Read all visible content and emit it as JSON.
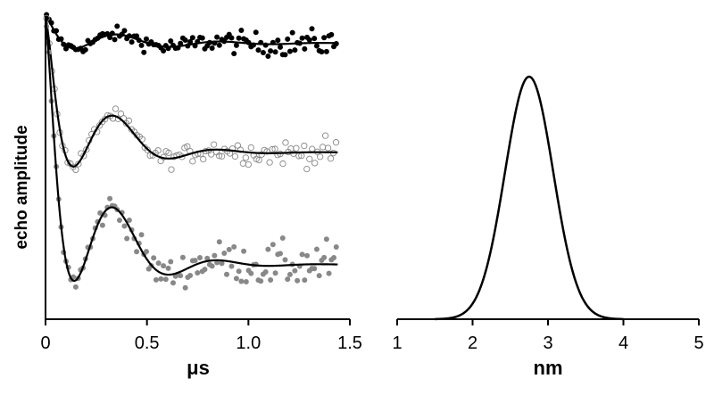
{
  "ylabel_text": "echo amplitude",
  "chart_data": [
    {
      "type": "scatter",
      "xlabel": "μs",
      "ylabel": "echo amplitude",
      "xlim": [
        0,
        1.5
      ],
      "xticks": [
        "0",
        "0.5",
        "1.0",
        "1.5"
      ],
      "ylim": [
        0,
        1
      ],
      "grid": false,
      "series": [
        {
          "style": "filled-black",
          "color": "#000000",
          "fit": {
            "baseline": 0.91,
            "depth": 0.07,
            "tau": 0.12,
            "period": 0.5,
            "damp": 0.35
          },
          "noise": 0.012,
          "points": 120
        },
        {
          "style": "open-gray",
          "color": "#888888",
          "fit": {
            "baseline": 0.55,
            "depth": 0.42,
            "tau": 0.14,
            "period": 0.5,
            "damp": 0.22
          },
          "noise": 0.012,
          "points": 110
        },
        {
          "style": "filled-gray",
          "color": "#888888",
          "fit": {
            "baseline": 0.18,
            "depth": 0.66,
            "tau": 0.13,
            "period": 0.5,
            "damp": 0.22
          },
          "noise": 0.022,
          "points": 120
        }
      ]
    },
    {
      "type": "line",
      "xlabel": "nm",
      "xlim": [
        1,
        5
      ],
      "xticks": [
        "1",
        "2",
        "3",
        "4",
        "5"
      ],
      "ylim": [
        0,
        1
      ],
      "grid": false,
      "series": [
        {
          "style": "black-line",
          "color": "#000000",
          "center": 2.75,
          "sigma": 0.32,
          "peak": 1.0
        }
      ]
    }
  ]
}
